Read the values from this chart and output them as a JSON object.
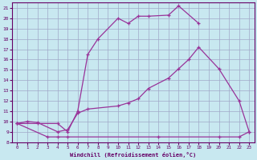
{
  "bg_color": "#c8e8f0",
  "grid_color": "#a0a8c8",
  "line_color": "#993399",
  "curve1_x": [
    0,
    2,
    4,
    5,
    6,
    7,
    8,
    10,
    11,
    12,
    13,
    15,
    16,
    18
  ],
  "curve1_y": [
    9.8,
    9.8,
    9.8,
    9.0,
    11.0,
    16.5,
    18.0,
    20.0,
    19.5,
    20.2,
    20.2,
    20.3,
    21.2,
    19.5
  ],
  "curve2_x": [
    0,
    1,
    2,
    4,
    5,
    6,
    7,
    10,
    11,
    12,
    13,
    15,
    16,
    17,
    18,
    20,
    22,
    23
  ],
  "curve2_y": [
    9.8,
    10.0,
    9.9,
    9.0,
    9.2,
    10.8,
    11.2,
    11.5,
    11.8,
    12.2,
    13.2,
    14.2,
    15.1,
    16.0,
    17.2,
    15.1,
    12.0,
    9.0
  ],
  "curve3_x": [
    0,
    3,
    4,
    5,
    14,
    20,
    22,
    23
  ],
  "curve3_y": [
    9.8,
    8.5,
    8.5,
    8.5,
    8.5,
    8.5,
    8.5,
    9.0
  ],
  "xlabel": "Windchill (Refroidissement éolien,°C)",
  "xlim": [
    -0.5,
    23.5
  ],
  "ylim": [
    8,
    21.5
  ],
  "yticks": [
    8,
    9,
    10,
    11,
    12,
    13,
    14,
    15,
    16,
    17,
    18,
    19,
    20,
    21
  ],
  "xticks": [
    0,
    1,
    2,
    3,
    4,
    5,
    6,
    7,
    8,
    9,
    10,
    11,
    12,
    13,
    14,
    15,
    16,
    17,
    18,
    19,
    20,
    21,
    22,
    23
  ]
}
